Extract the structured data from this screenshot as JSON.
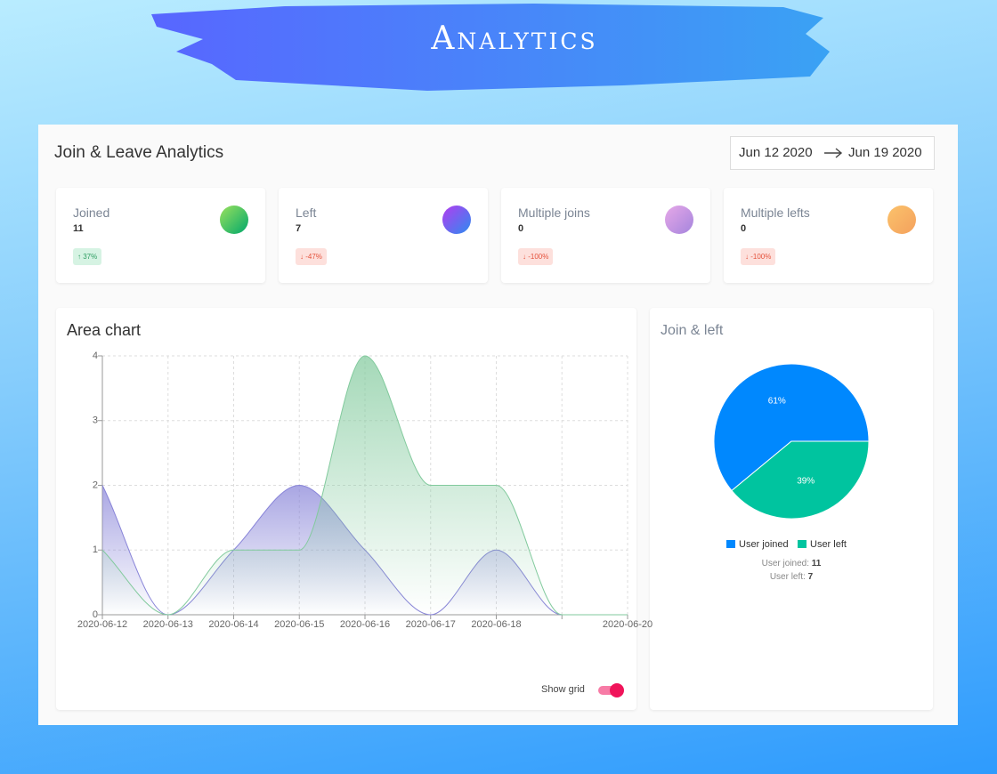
{
  "header": {
    "title": "Analytics"
  },
  "panel": {
    "title": "Join & Leave Analytics",
    "date_from": "Jun 12 2020",
    "date_to": "Jun 19 2020"
  },
  "cards": [
    {
      "title": "Joined",
      "value": 11,
      "change": "37%"
    },
    {
      "title": "Left",
      "value": 7,
      "change": "-47%"
    },
    {
      "title": "Multiple joins",
      "value": 0,
      "change": "-100%"
    },
    {
      "title": "Multiple lefts",
      "value": 0,
      "change": "-100%"
    }
  ],
  "grid_toggle": {
    "label": "Show grid"
  },
  "chart_data": [
    {
      "type": "area",
      "title": "Area chart",
      "x": [
        "2020-06-12",
        "2020-06-13",
        "2020-06-14",
        "2020-06-15",
        "2020-06-16",
        "2020-06-17",
        "2020-06-18",
        null,
        "2020-06-20"
      ],
      "series": [
        {
          "color": "#8884d8",
          "values": [
            2,
            0,
            1,
            2,
            1,
            0,
            1,
            0,
            0
          ]
        },
        {
          "color": "#82ca9d",
          "values": [
            1,
            0,
            1,
            1,
            4,
            2,
            2,
            0,
            0
          ]
        }
      ],
      "ylim": [
        0,
        4
      ],
      "yticks": [
        0,
        1,
        2,
        3,
        4
      ],
      "grid": true
    },
    {
      "type": "pie",
      "title": "Join & left",
      "categories": [
        "User joined",
        "User left"
      ],
      "values": [
        61,
        39
      ],
      "value_labels": [
        "61%",
        "39%"
      ],
      "colors": [
        "#0088fe",
        "#00c49f"
      ],
      "summary": [
        {
          "label": "User joined:",
          "value": 11
        },
        {
          "label": "User left:",
          "value": 7
        }
      ]
    }
  ]
}
